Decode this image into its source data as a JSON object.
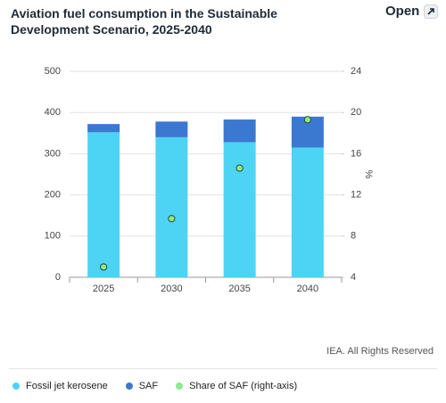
{
  "open_button": "Open",
  "chart_data": {
    "type": "bar",
    "stacked": true,
    "title": "Aviation fuel consumption in the Sustainable Development Scenario, 2025-2040",
    "categories": [
      "2025",
      "2030",
      "2035",
      "2040"
    ],
    "series": [
      {
        "name": "Fossil jet kerosene",
        "color": "#4dd4f5",
        "type": "bar",
        "values": [
          352,
          340,
          328,
          315
        ]
      },
      {
        "name": "SAF",
        "color": "#3b78cf",
        "type": "bar",
        "values": [
          20,
          38,
          55,
          75
        ]
      },
      {
        "name": "Share of SAF (right-axis)",
        "color": "#8ee88e",
        "type": "scatter",
        "axis": "y2",
        "values": [
          5,
          9.7,
          14.6,
          19.3
        ]
      }
    ],
    "ylim": [
      0,
      500
    ],
    "yticks": [
      0,
      100,
      200,
      300,
      400,
      500
    ],
    "y2lim": [
      4,
      24
    ],
    "y2ticks": [
      4,
      8,
      12,
      16,
      20,
      24
    ],
    "y2label": "%",
    "grid": true,
    "source": "IEA. All Rights Reserved"
  }
}
